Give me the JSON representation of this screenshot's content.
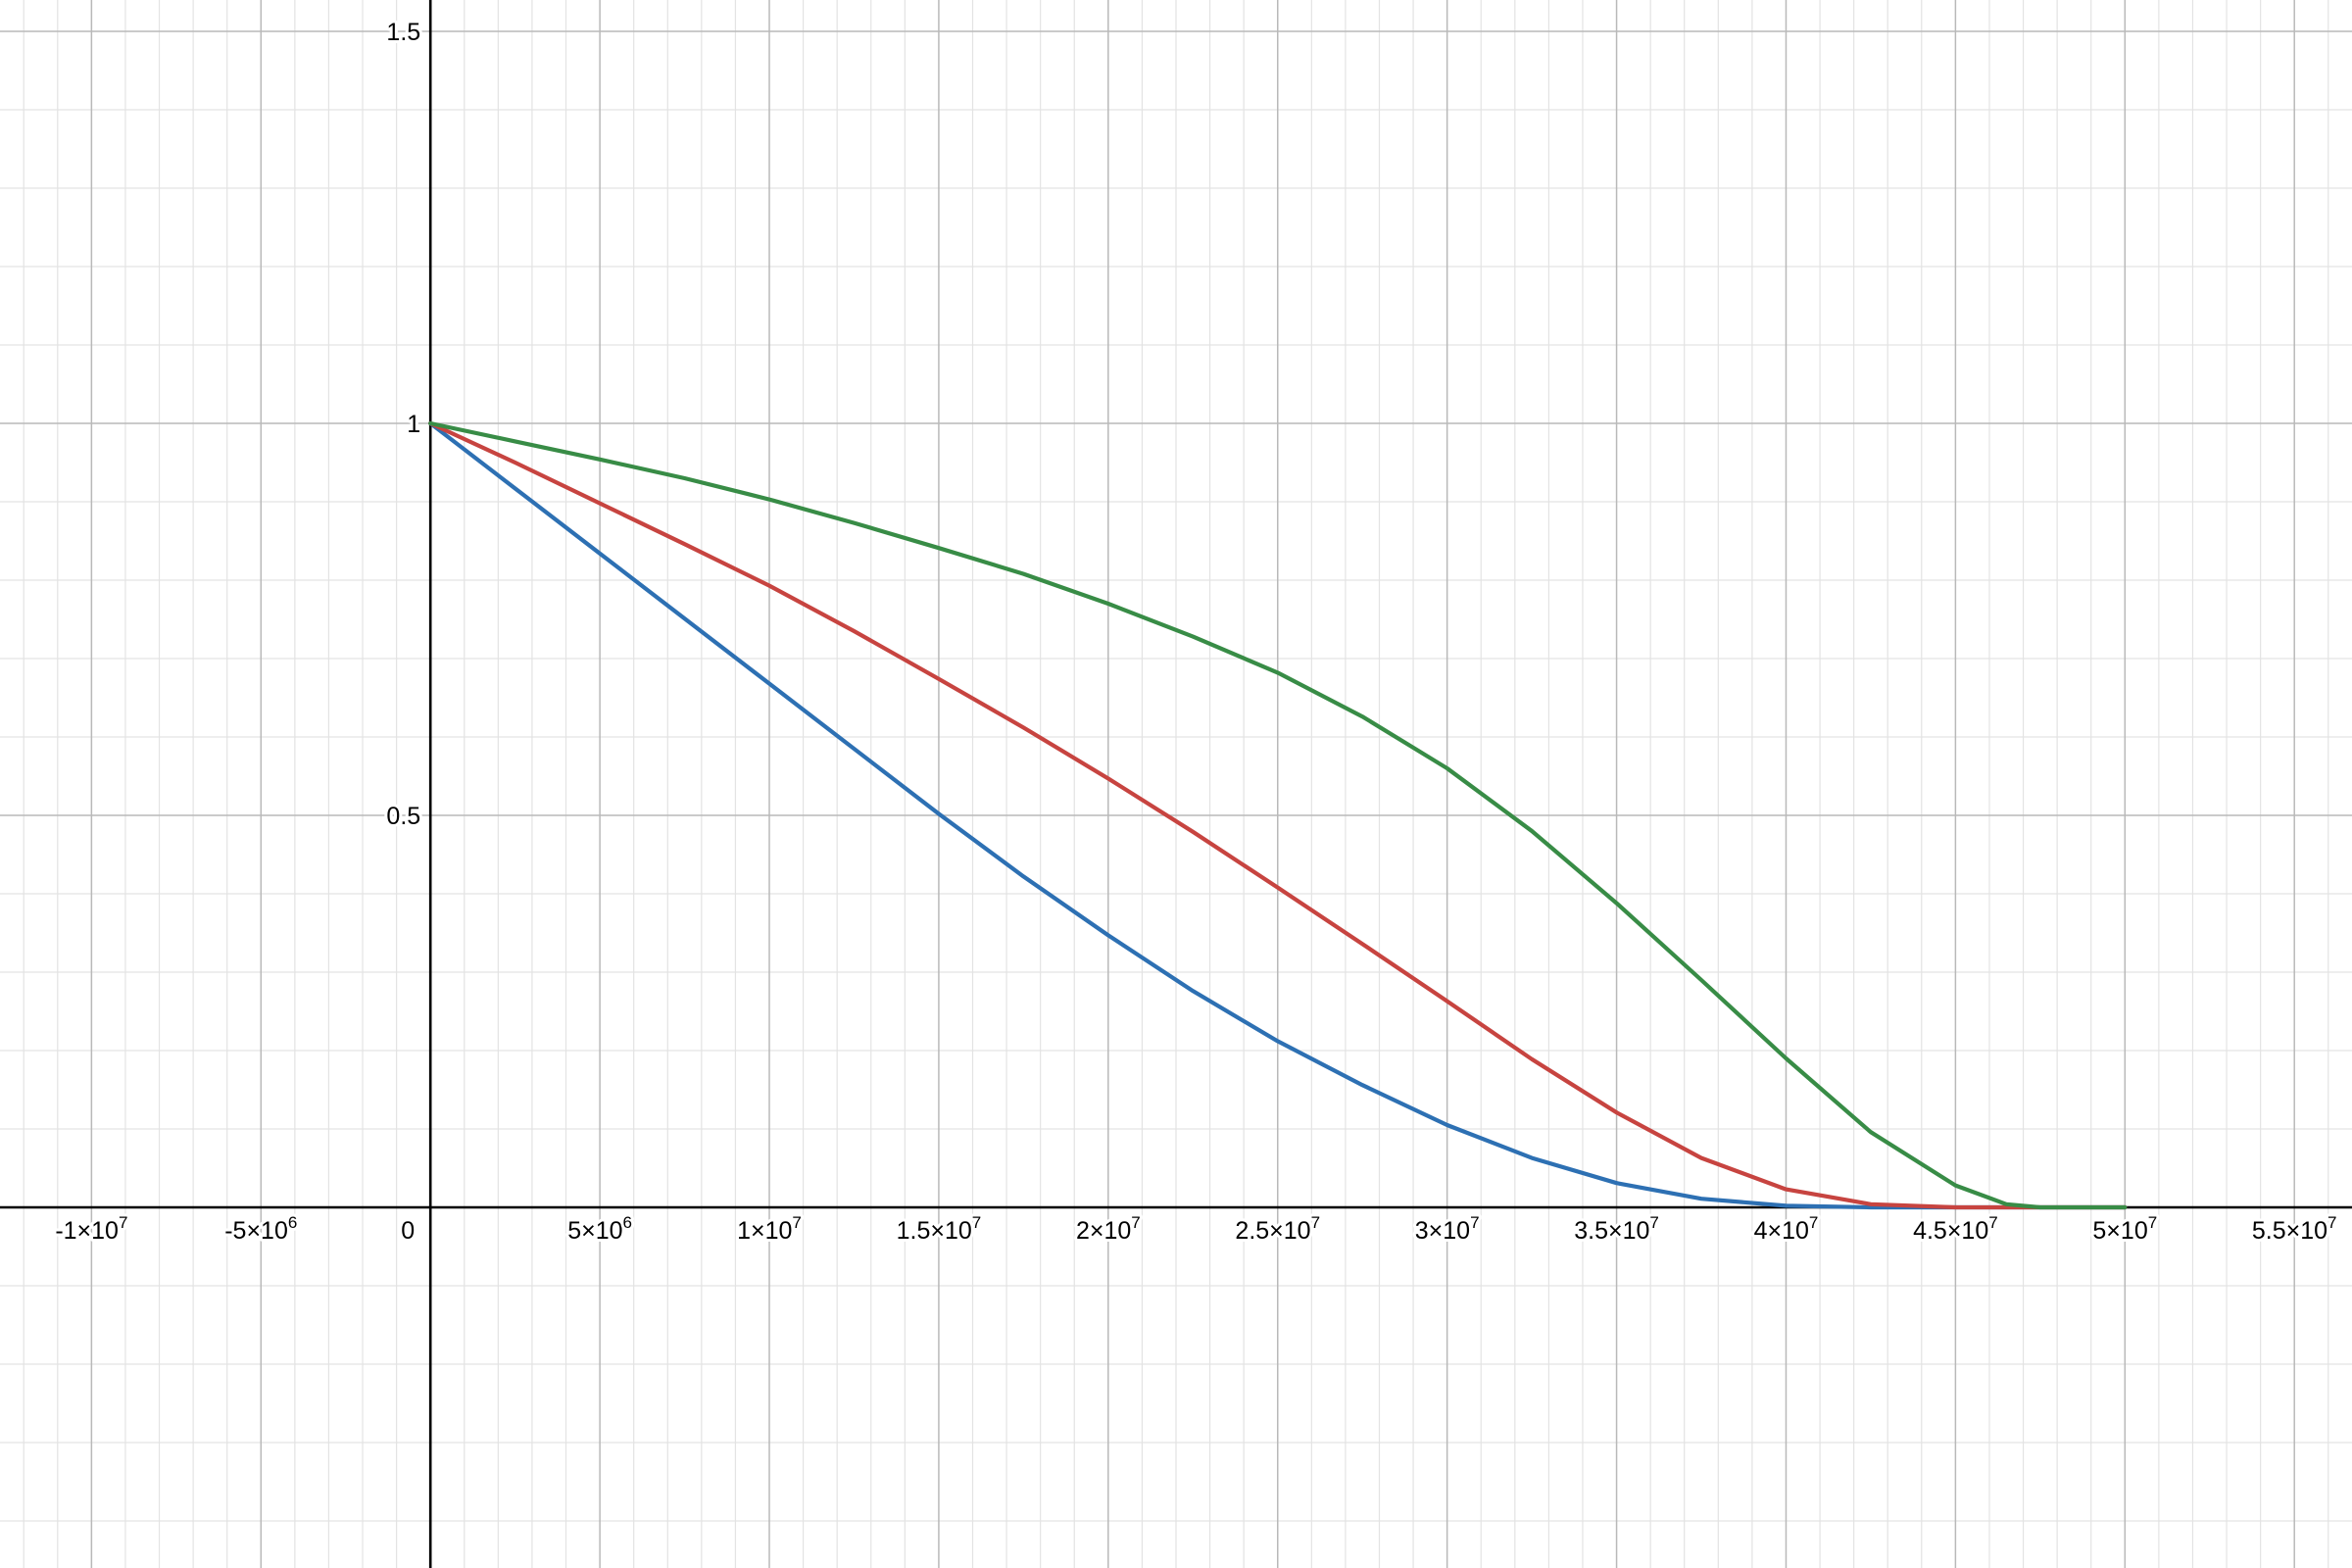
{
  "chart_data": {
    "type": "line",
    "title": "",
    "xlabel": "",
    "ylabel": "",
    "grid": true,
    "xlim": [
      -12700000,
      56700000
    ],
    "ylim": [
      -0.46,
      1.54
    ],
    "x_major_step": 5000000,
    "x_minor_step": 1000000,
    "y_major_step": 0.5,
    "y_minor_step": 0.1,
    "x_tick_labels": [
      {
        "value": -10000000,
        "mantissa": "-1",
        "exp": "7"
      },
      {
        "value": -5000000,
        "mantissa": "-5",
        "exp": "6"
      },
      {
        "value": 0,
        "mantissa": "0",
        "exp": ""
      },
      {
        "value": 5000000,
        "mantissa": "5",
        "exp": "6"
      },
      {
        "value": 10000000,
        "mantissa": "1",
        "exp": "7"
      },
      {
        "value": 15000000,
        "mantissa": "1.5",
        "exp": "7"
      },
      {
        "value": 20000000,
        "mantissa": "2",
        "exp": "7"
      },
      {
        "value": 25000000,
        "mantissa": "2.5",
        "exp": "7"
      },
      {
        "value": 30000000,
        "mantissa": "3",
        "exp": "7"
      },
      {
        "value": 35000000,
        "mantissa": "3.5",
        "exp": "7"
      },
      {
        "value": 40000000,
        "mantissa": "4",
        "exp": "7"
      },
      {
        "value": 45000000,
        "mantissa": "4.5",
        "exp": "7"
      },
      {
        "value": 50000000,
        "mantissa": "5",
        "exp": "7"
      },
      {
        "value": 55000000,
        "mantissa": "5.5",
        "exp": "7"
      }
    ],
    "y_tick_labels": [
      {
        "value": 0.5,
        "label": "0.5"
      },
      {
        "value": 1,
        "label": "1"
      },
      {
        "value": 1.5,
        "label": "1.5"
      }
    ],
    "series": [
      {
        "color": "#2d70b3",
        "x": [
          0,
          2500000,
          5000000,
          7500000,
          10000000,
          12500000,
          15000000,
          17500000,
          20000000,
          22500000,
          25000000,
          27500000,
          30000000,
          32500000,
          35000000,
          37500000,
          40000000,
          42500000,
          45000000,
          47500000,
          50000000
        ],
        "y": [
          1.0,
          0.917,
          0.834,
          0.751,
          0.668,
          0.585,
          0.502,
          0.422,
          0.347,
          0.276,
          0.212,
          0.156,
          0.105,
          0.063,
          0.031,
          0.011,
          0.002,
          0.0,
          0.0,
          0.0,
          0.0
        ]
      },
      {
        "color": "#c74440",
        "x": [
          0,
          2500000,
          5000000,
          7500000,
          10000000,
          12500000,
          15000000,
          17500000,
          20000000,
          22500000,
          25000000,
          27500000,
          30000000,
          32500000,
          35000000,
          37500000,
          40000000,
          42500000,
          45000000,
          47500000,
          50000000
        ],
        "y": [
          1.0,
          0.95,
          0.898,
          0.846,
          0.793,
          0.735,
          0.674,
          0.612,
          0.547,
          0.479,
          0.408,
          0.336,
          0.263,
          0.189,
          0.121,
          0.063,
          0.023,
          0.004,
          0.0,
          0.0,
          0.0
        ]
      },
      {
        "color": "#388c46",
        "x": [
          0,
          2500000,
          5000000,
          7500000,
          10000000,
          12500000,
          15000000,
          17500000,
          20000000,
          22500000,
          25000000,
          27500000,
          30000000,
          32500000,
          35000000,
          37500000,
          40000000,
          42500000,
          45000000,
          46500000,
          47500000,
          50000000
        ],
        "y": [
          1.0,
          0.977,
          0.954,
          0.93,
          0.903,
          0.873,
          0.841,
          0.808,
          0.77,
          0.728,
          0.682,
          0.626,
          0.56,
          0.48,
          0.388,
          0.29,
          0.19,
          0.096,
          0.028,
          0.004,
          0.0,
          0.0
        ]
      }
    ]
  }
}
